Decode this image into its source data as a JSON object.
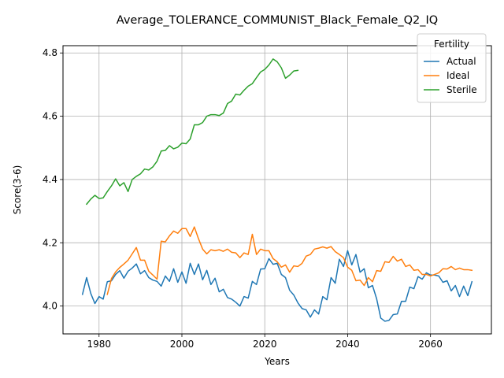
{
  "chart_data": {
    "type": "line",
    "title": "Average_TOLERANCE_COMMUNIST_Black_Female_Q2_IQ",
    "xlabel": "Years",
    "ylabel": "Score(3-6)",
    "xlim": [
      1971.3,
      2074.7
    ],
    "ylim": [
      3.912,
      4.823
    ],
    "xticks": [
      1980,
      2000,
      2020,
      2040,
      2060
    ],
    "yticks": [
      4.0,
      4.2,
      4.4,
      4.6,
      4.8
    ],
    "grid": true,
    "legend": {
      "title": "Fertility",
      "position": "top-right"
    },
    "colors": {
      "Actual": "#1f77b4",
      "Ideal": "#ff7f0e",
      "Sterile": "#2ca02c"
    },
    "series": [
      {
        "name": "Actual",
        "x": [
          1976,
          1977,
          1978,
          1979,
          1980,
          1981,
          1982,
          1983,
          1984,
          1985,
          1986,
          1987,
          1988,
          1989,
          1990,
          1991,
          1992,
          1993,
          1994,
          1995,
          1996,
          1997,
          1998,
          1999,
          2000,
          2001,
          2002,
          2003,
          2004,
          2005,
          2006,
          2007,
          2008,
          2009,
          2010,
          2011,
          2012,
          2013,
          2014,
          2015,
          2016,
          2017,
          2018,
          2019,
          2020,
          2021,
          2022,
          2023,
          2024,
          2025,
          2026,
          2027,
          2028,
          2029,
          2030,
          2031,
          2032,
          2033,
          2034,
          2035,
          2036,
          2037,
          2038,
          2039,
          2040,
          2041,
          2042,
          2043,
          2044,
          2045,
          2046,
          2047,
          2048,
          2049,
          2050,
          2051,
          2052,
          2053,
          2054,
          2055,
          2056,
          2057,
          2058,
          2059,
          2060,
          2061,
          2062,
          2063,
          2064,
          2065,
          2066,
          2067,
          2068,
          2069,
          2070
        ],
        "values": [
          4.037,
          4.09,
          4.04,
          4.008,
          4.03,
          4.022,
          4.077,
          4.08,
          4.1,
          4.112,
          4.088,
          4.11,
          4.12,
          4.133,
          4.102,
          4.112,
          4.09,
          4.082,
          4.078,
          4.063,
          4.095,
          4.078,
          4.118,
          4.075,
          4.108,
          4.072,
          4.135,
          4.1,
          4.133,
          4.083,
          4.113,
          4.068,
          4.088,
          4.045,
          4.053,
          4.027,
          4.022,
          4.012,
          4.0,
          4.03,
          4.025,
          4.078,
          4.068,
          4.117,
          4.118,
          4.15,
          4.132,
          4.135,
          4.1,
          4.09,
          4.05,
          4.035,
          4.01,
          3.992,
          3.988,
          3.965,
          3.988,
          3.975,
          4.03,
          4.02,
          4.09,
          4.072,
          4.148,
          4.125,
          4.175,
          4.13,
          4.163,
          4.107,
          4.118,
          4.058,
          4.065,
          4.023,
          3.962,
          3.952,
          3.955,
          3.973,
          3.975,
          4.015,
          4.015,
          4.06,
          4.055,
          4.093,
          4.085,
          4.105,
          4.098,
          4.098,
          4.095,
          4.075,
          4.08,
          4.048,
          4.065,
          4.03,
          4.063,
          4.033,
          4.077
        ]
      },
      {
        "name": "Ideal",
        "x": [
          1982,
          1983,
          1984,
          1985,
          1986,
          1987,
          1988,
          1989,
          1990,
          1991,
          1992,
          1993,
          1994,
          1995,
          1996,
          1997,
          1998,
          1999,
          2000,
          2001,
          2002,
          2003,
          2004,
          2005,
          2006,
          2007,
          2008,
          2009,
          2010,
          2011,
          2012,
          2013,
          2014,
          2015,
          2016,
          2017,
          2018,
          2019,
          2020,
          2021,
          2022,
          2023,
          2024,
          2025,
          2026,
          2027,
          2028,
          2029,
          2030,
          2031,
          2032,
          2033,
          2034,
          2035,
          2036,
          2037,
          2038,
          2039,
          2040,
          2041,
          2042,
          2043,
          2044,
          2045,
          2046,
          2047,
          2048,
          2049,
          2050,
          2051,
          2052,
          2053,
          2054,
          2055,
          2056,
          2057,
          2058,
          2059,
          2060,
          2061,
          2062,
          2063,
          2064,
          2065,
          2066,
          2067,
          2068,
          2069,
          2070
        ],
        "values": [
          4.037,
          4.087,
          4.108,
          4.122,
          4.133,
          4.145,
          4.165,
          4.185,
          4.145,
          4.145,
          4.11,
          4.098,
          4.085,
          4.205,
          4.203,
          4.222,
          4.237,
          4.23,
          4.245,
          4.245,
          4.22,
          4.25,
          4.213,
          4.18,
          4.165,
          4.178,
          4.175,
          4.178,
          4.173,
          4.18,
          4.17,
          4.168,
          4.153,
          4.168,
          4.163,
          4.227,
          4.163,
          4.18,
          4.175,
          4.175,
          4.15,
          4.14,
          4.123,
          4.13,
          4.107,
          4.127,
          4.125,
          4.135,
          4.158,
          4.163,
          4.18,
          4.183,
          4.187,
          4.183,
          4.188,
          4.172,
          4.163,
          4.153,
          4.123,
          4.113,
          4.08,
          4.082,
          4.065,
          4.09,
          4.077,
          4.112,
          4.11,
          4.14,
          4.138,
          4.157,
          4.142,
          4.148,
          4.125,
          4.13,
          4.113,
          4.115,
          4.1,
          4.1,
          4.095,
          4.1,
          4.105,
          4.118,
          4.117,
          4.125,
          4.115,
          4.12,
          4.115,
          4.115,
          4.113
        ]
      },
      {
        "name": "Sterile",
        "x": [
          1977,
          1978,
          1979,
          1980,
          1981,
          1982,
          1983,
          1984,
          1985,
          1986,
          1987,
          1988,
          1989,
          1990,
          1991,
          1992,
          1993,
          1994,
          1995,
          1996,
          1997,
          1998,
          1999,
          2000,
          2001,
          2002,
          2003,
          2004,
          2005,
          2006,
          2007,
          2008,
          2009,
          2010,
          2011,
          2012,
          2013,
          2014,
          2015,
          2016,
          2017,
          2018,
          2019,
          2020,
          2021,
          2022,
          2023,
          2024,
          2025,
          2026,
          2027,
          2028
        ],
        "values": [
          4.322,
          4.338,
          4.35,
          4.34,
          4.342,
          4.362,
          4.38,
          4.402,
          4.38,
          4.39,
          4.362,
          4.4,
          4.41,
          4.418,
          4.433,
          4.43,
          4.44,
          4.458,
          4.49,
          4.492,
          4.507,
          4.497,
          4.502,
          4.515,
          4.513,
          4.528,
          4.573,
          4.573,
          4.58,
          4.6,
          4.605,
          4.605,
          4.602,
          4.61,
          4.64,
          4.648,
          4.67,
          4.667,
          4.682,
          4.695,
          4.703,
          4.722,
          4.74,
          4.748,
          4.762,
          4.781,
          4.772,
          4.753,
          4.72,
          4.73,
          4.743,
          4.745
        ]
      }
    ]
  }
}
